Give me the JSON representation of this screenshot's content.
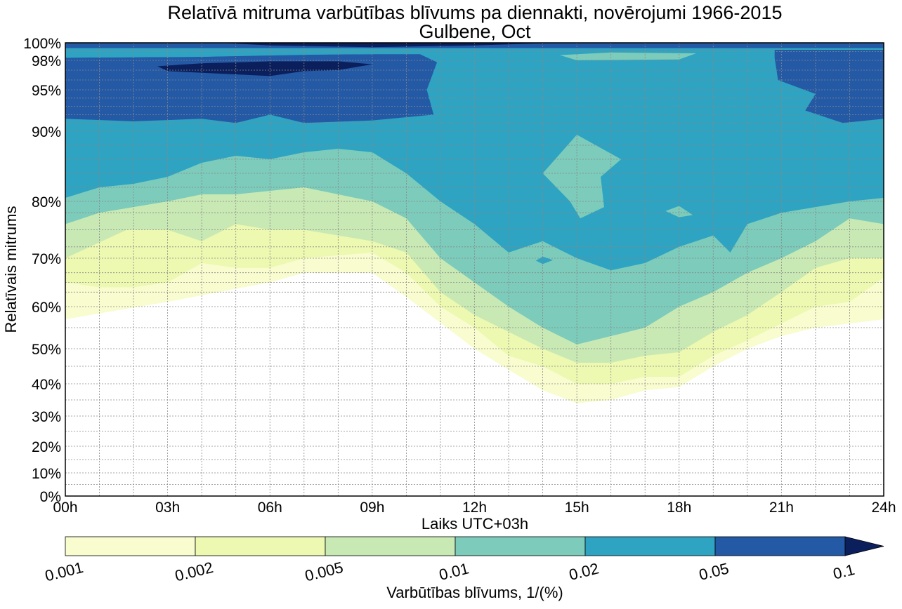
{
  "chart_data": {
    "type": "contourf",
    "title": "Relatīvā mitruma varbūtības blīvums pa diennakti, novērojumi 1966-2015",
    "subtitle": "Gulbene, Oct",
    "xlabel": "Laiks UTC+03h",
    "ylabel": "Relatīvais mitrums",
    "xlim": [
      0,
      24
    ],
    "ylim": [
      0,
      100
    ],
    "x_ticks": [
      "00h",
      "03h",
      "06h",
      "09h",
      "12h",
      "15h",
      "18h",
      "21h",
      "24h"
    ],
    "y_ticks": [
      {
        "v": 100,
        "l": "100%"
      },
      {
        "v": 98,
        "l": "98%"
      },
      {
        "v": 95,
        "l": "95%"
      },
      {
        "v": 90,
        "l": "90%"
      },
      {
        "v": 80,
        "l": "80%"
      },
      {
        "v": 70,
        "l": "70%"
      },
      {
        "v": 60,
        "l": "60%"
      },
      {
        "v": 50,
        "l": "50%"
      },
      {
        "v": 40,
        "l": "40%"
      },
      {
        "v": 30,
        "l": "30%"
      },
      {
        "v": 20,
        "l": "20%"
      },
      {
        "v": 10,
        "l": "10%"
      },
      {
        "v": 0,
        "l": "0%"
      }
    ],
    "grid": true,
    "colorbar": {
      "label": "Varbūtības blīvums, 1/(%)",
      "levels": [
        "0.001",
        "0.002",
        "0.005",
        "0.01",
        "0.02",
        "0.05",
        "0.1"
      ],
      "colors": [
        "#f8fcce",
        "#edf8b1",
        "#c8e9b4",
        "#7ccbbb",
        "#2ea3c2",
        "#2359a5",
        "#0b1f5c"
      ],
      "extend": "max"
    },
    "contour_lower_boundaries": [
      {
        "level": "0.001",
        "points": [
          [
            0,
            57
          ],
          [
            3,
            61
          ],
          [
            6,
            65
          ],
          [
            7,
            67
          ],
          [
            9,
            67
          ],
          [
            10,
            62
          ],
          [
            12,
            50
          ],
          [
            13,
            44
          ],
          [
            14,
            38
          ],
          [
            15,
            34
          ],
          [
            16,
            35
          ],
          [
            17,
            38
          ],
          [
            18,
            39
          ],
          [
            19,
            45
          ],
          [
            20,
            50
          ],
          [
            21,
            53
          ],
          [
            22,
            55
          ],
          [
            23,
            56
          ],
          [
            24,
            57
          ]
        ]
      },
      {
        "level": "0.002",
        "points": [
          [
            0,
            65
          ],
          [
            1,
            64
          ],
          [
            2,
            64
          ],
          [
            3,
            65
          ],
          [
            4,
            69
          ],
          [
            5,
            68
          ],
          [
            6,
            68
          ],
          [
            7,
            70
          ],
          [
            9,
            71
          ],
          [
            10,
            67
          ],
          [
            11,
            60
          ],
          [
            12,
            55
          ],
          [
            13,
            48
          ],
          [
            14,
            45
          ],
          [
            15,
            40
          ],
          [
            16,
            40
          ],
          [
            17,
            42
          ],
          [
            18,
            42
          ],
          [
            19,
            48
          ],
          [
            20,
            52
          ],
          [
            21,
            56
          ],
          [
            22,
            60
          ],
          [
            23,
            61
          ],
          [
            24,
            66
          ]
        ]
      },
      {
        "level": "0.005",
        "points": [
          [
            0,
            70
          ],
          [
            1.8,
            75
          ],
          [
            3,
            75
          ],
          [
            4,
            73
          ],
          [
            5,
            76
          ],
          [
            6,
            75
          ],
          [
            7,
            75
          ],
          [
            9,
            73
          ],
          [
            10,
            71
          ],
          [
            11,
            63
          ],
          [
            12,
            58
          ],
          [
            13,
            54
          ],
          [
            14,
            50
          ],
          [
            15,
            46
          ],
          [
            16,
            46
          ],
          [
            17,
            48
          ],
          [
            18,
            49
          ],
          [
            19,
            54
          ],
          [
            20,
            58
          ],
          [
            21,
            63
          ],
          [
            22,
            68
          ],
          [
            23,
            70
          ],
          [
            24,
            70
          ]
        ]
      },
      {
        "level": "0.01",
        "points": [
          [
            0,
            76
          ],
          [
            1,
            78
          ],
          [
            2,
            79
          ],
          [
            3,
            80
          ],
          [
            4,
            81
          ],
          [
            5,
            81
          ],
          [
            6,
            81.5
          ],
          [
            7,
            82
          ],
          [
            8,
            81
          ],
          [
            9,
            80
          ],
          [
            10,
            77
          ],
          [
            11,
            70
          ],
          [
            12,
            65
          ],
          [
            13,
            60
          ],
          [
            14,
            55
          ],
          [
            15,
            51
          ],
          [
            16,
            53
          ],
          [
            17,
            55
          ],
          [
            18,
            60
          ],
          [
            19,
            63
          ],
          [
            20,
            67
          ],
          [
            21,
            70
          ],
          [
            22,
            73
          ],
          [
            23,
            77
          ],
          [
            24,
            76
          ]
        ]
      },
      {
        "level": "0.02",
        "points": [
          [
            0,
            80.5
          ],
          [
            1,
            82
          ],
          [
            2,
            82.5
          ],
          [
            3,
            83.5
          ],
          [
            4,
            85.5
          ],
          [
            5,
            86.5
          ],
          [
            6,
            86
          ],
          [
            7,
            87
          ],
          [
            8,
            87.5
          ],
          [
            9,
            87
          ],
          [
            10,
            84
          ],
          [
            11,
            80
          ],
          [
            12,
            76
          ],
          [
            13,
            71
          ],
          [
            14,
            73
          ],
          [
            15,
            70
          ],
          [
            16,
            67.5
          ],
          [
            17,
            69
          ],
          [
            18,
            72
          ],
          [
            19,
            74
          ],
          [
            19.5,
            71
          ],
          [
            20,
            76
          ],
          [
            21,
            78
          ],
          [
            22,
            79
          ],
          [
            23,
            80
          ],
          [
            24,
            80.5
          ]
        ]
      }
    ],
    "contour_regions": [
      {
        "level": "0.05",
        "points": [
          [
            0,
            91.5
          ],
          [
            2,
            91.2
          ],
          [
            4,
            91.5
          ],
          [
            5,
            91
          ],
          [
            6,
            92
          ],
          [
            7,
            91
          ],
          [
            9,
            91.3
          ],
          [
            10.8,
            92
          ],
          [
            10.6,
            95
          ],
          [
            10.9,
            97.8
          ],
          [
            10.4,
            98.7
          ],
          [
            8,
            98.7
          ],
          [
            4,
            98.4
          ],
          [
            0,
            98.3
          ]
        ]
      },
      {
        "level": "0.05",
        "points": [
          [
            20.8,
            98.3
          ],
          [
            20.9,
            96
          ],
          [
            22,
            94.5
          ],
          [
            21.7,
            92.5
          ],
          [
            22.8,
            91
          ],
          [
            24,
            91.5
          ],
          [
            24,
            99.2
          ],
          [
            20.8,
            99.2
          ]
        ]
      },
      {
        "level": "0.05",
        "points": [
          [
            0,
            99.4
          ],
          [
            24,
            99.4
          ],
          [
            24,
            100
          ],
          [
            0,
            100
          ]
        ]
      },
      {
        "level": "0.1",
        "points": [
          [
            4.5,
            100
          ],
          [
            6,
            99.7
          ],
          [
            9,
            99.5
          ],
          [
            12,
            99.7
          ],
          [
            14.5,
            100
          ]
        ]
      },
      {
        "level": "0.1",
        "points": [
          [
            2.7,
            97.4
          ],
          [
            3,
            96.9
          ],
          [
            6,
            96.4
          ],
          [
            7,
            96.9
          ],
          [
            8,
            97.0
          ],
          [
            9,
            97.6
          ],
          [
            8,
            97.9
          ],
          [
            6,
            97.9
          ],
          [
            4,
            97.7
          ]
        ]
      },
      {
        "level": "0.02",
        "points": [
          [
            0,
            98.3
          ],
          [
            4,
            98.4
          ],
          [
            6,
            98.6
          ],
          [
            9,
            98.7
          ],
          [
            9,
            99.4
          ],
          [
            0,
            99.4
          ]
        ]
      },
      {
        "level": "0.01",
        "points": [
          [
            14.5,
            98.6
          ],
          [
            16,
            98.9
          ],
          [
            18.5,
            98.8
          ],
          [
            18,
            98.1
          ],
          [
            15,
            98.0
          ]
        ]
      },
      {
        "level": "0.01",
        "points": [
          [
            14,
            84
          ],
          [
            15,
            89.5
          ],
          [
            16.3,
            86
          ],
          [
            15.7,
            83.5
          ],
          [
            15.8,
            79
          ],
          [
            15.1,
            77
          ],
          [
            14.8,
            80
          ],
          [
            14.2,
            83
          ]
        ]
      },
      {
        "level": "0.01",
        "points": [
          [
            17.6,
            78.3
          ],
          [
            18,
            79.2
          ],
          [
            18.4,
            77.6
          ],
          [
            18,
            77.2
          ]
        ]
      },
      {
        "level": "0.02",
        "points": [
          [
            13.8,
            69.5
          ],
          [
            14,
            70.3
          ],
          [
            14.3,
            69.6
          ],
          [
            14,
            68.8
          ]
        ]
      }
    ]
  }
}
